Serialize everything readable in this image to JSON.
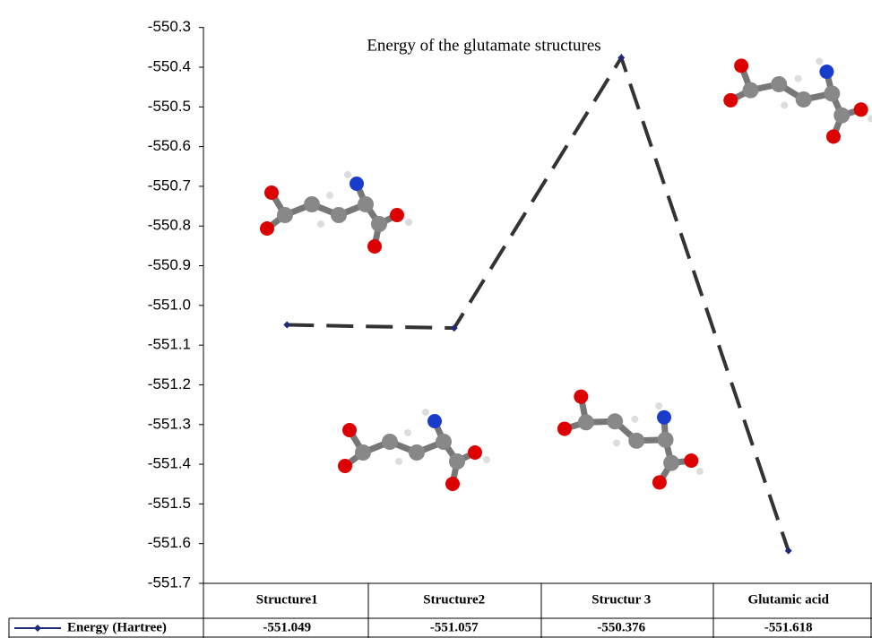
{
  "chart_data": {
    "type": "line",
    "title": "Energy of the glutamate structures",
    "categories": [
      "Structure1",
      "Structure2",
      "Structur 3",
      "Glutamic acid"
    ],
    "series": [
      {
        "name": "Energy (Hartree)",
        "color": "#333333",
        "marker_color": "#1f2a7a",
        "values": [
          -551.049,
          -551.057,
          -550.376,
          -551.618
        ]
      }
    ],
    "ylim": [
      -551.7,
      -550.3
    ],
    "yticks": [
      -551.7,
      -551.6,
      -551.5,
      -551.4,
      -551.3,
      -551.2,
      -551.1,
      {
        "value": -551,
        "label": "-551.0"
      },
      -550.9,
      -550.8,
      -550.7,
      -550.6,
      -550.5,
      -550.4,
      -550.3
    ]
  }
}
